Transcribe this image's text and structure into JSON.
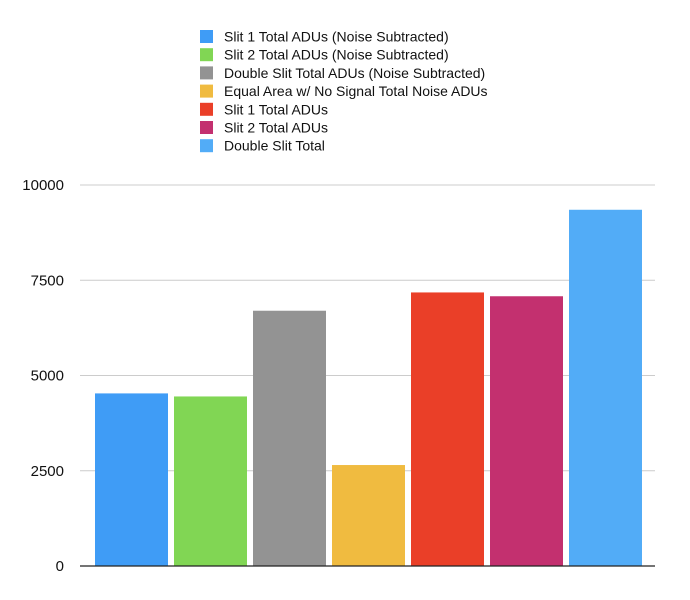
{
  "chart_data": {
    "type": "bar",
    "categories": [
      "Slit 1 Total ADUs (Noise Subtracted)",
      "Slit 2 Total ADUs (Noise Subtracted)",
      "Double Slit Total ADUs (Noise Subtracted)",
      "Equal Area w/ No Signal Total Noise ADUs",
      "Slit 1 Total ADUs",
      "Slit 2 Total ADUs",
      "Double Slit Total"
    ],
    "values": [
      4530,
      4450,
      6700,
      2650,
      7180,
      7080,
      9350
    ],
    "colors": [
      "#3f9cf6",
      "#81d654",
      "#939393",
      "#f0bb40",
      "#ea3f28",
      "#c3306f",
      "#52acf7"
    ],
    "ylim": [
      0,
      10000
    ],
    "yticks": [
      "0",
      "2500",
      "5000",
      "7500",
      "10000"
    ],
    "grid": true,
    "legend_position": "top-center"
  }
}
